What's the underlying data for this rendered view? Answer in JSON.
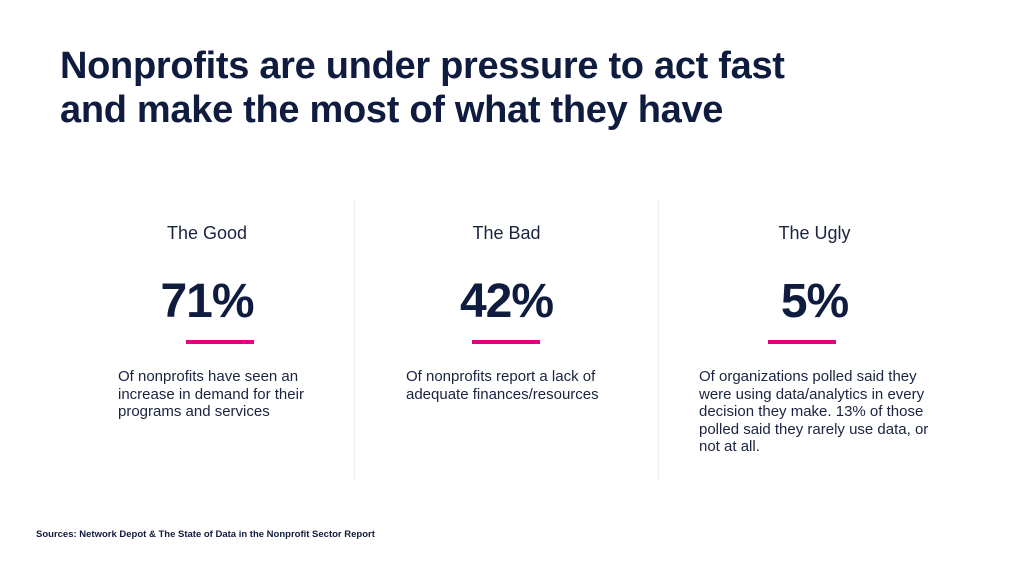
{
  "title": {
    "line1": "Nonprofits are under pressure to act fast",
    "line2": "and make the most of what they have"
  },
  "columns": [
    {
      "heading": "The Good",
      "stat": "71%",
      "description": "Of nonprofits have seen an increase in demand for their programs and services"
    },
    {
      "heading": "The Bad",
      "stat": "42%",
      "description": "Of nonprofits report a lack of adequate finances/resources"
    },
    {
      "heading": "The Ugly",
      "stat": "5%",
      "description": "Of organizations polled said they were using data/analytics in every decision they make. 13% of those polled said they rarely use data, or not at all."
    }
  ],
  "source": "Sources: Network Depot & The State of Data in the Nonprofit Sector Report",
  "colors": {
    "title": "#0f1c3f",
    "accent": "#e6007e",
    "divider": "#eceef2"
  }
}
